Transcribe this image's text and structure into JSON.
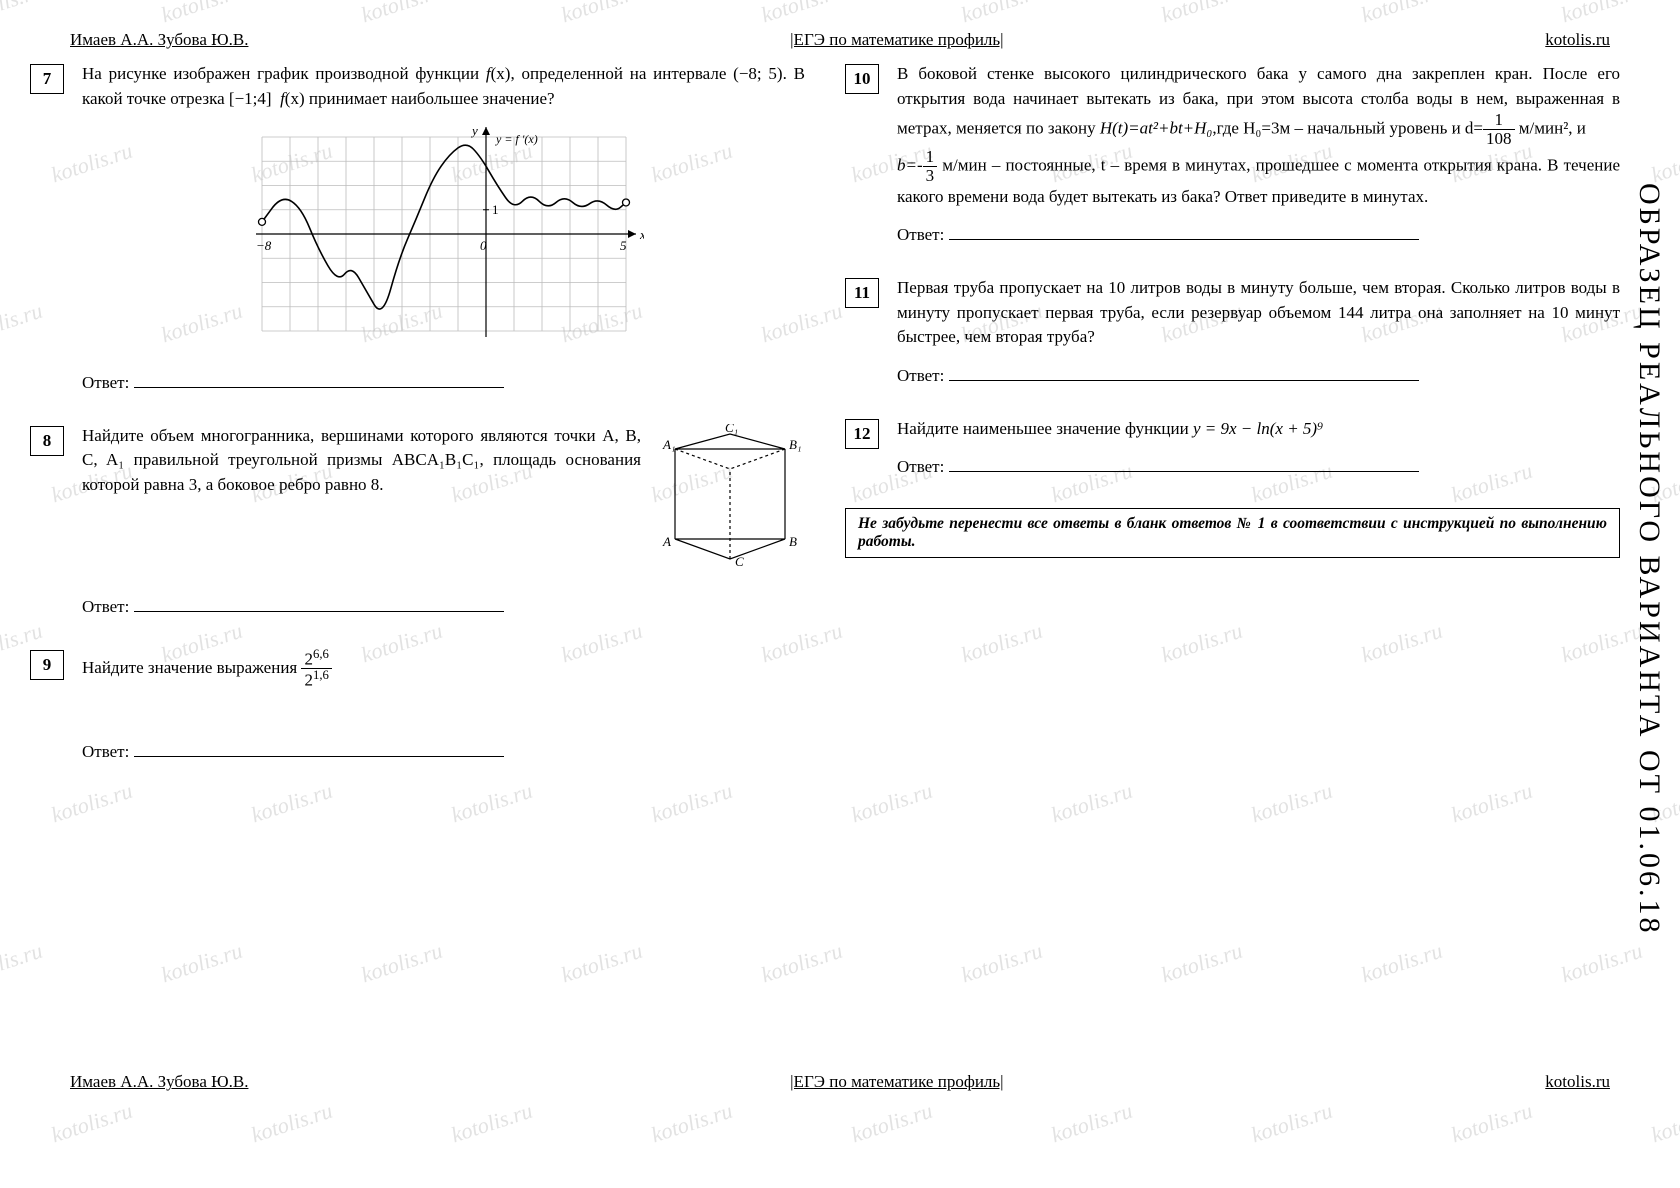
{
  "header": {
    "authors": "Имаев А.А. Зубова Ю.В.",
    "title": "|ЕГЭ по математике профиль|",
    "site": "kotolis.ru"
  },
  "side_label": "ОБРАЗЕЦ РЕАЛЬНОГО ВАРИАНТА ОТ 01.06.18",
  "watermark_text": "kotolis.ru",
  "answer_label": "Ответ:",
  "note": "Не забудьте перенести все ответы в бланк ответов № 1 в соответствии с инструкцией по выполнению работы.",
  "problems": {
    "p7": {
      "num": "7",
      "text_a": "На рисунке изображен график производной функции ",
      "fx": "f",
      "text_b": "(x), определенной на интервале (−8; 5). В какой точке отрезка [−1;4] ",
      "text_c": "(x) принимает наибольшее значение?",
      "chart": {
        "xgrid": [
          -8,
          -7,
          -6,
          -5,
          -4,
          -3,
          -2,
          -1,
          0,
          1,
          2,
          3,
          4,
          5
        ],
        "ygrid": [
          -4,
          -3,
          -2,
          -1,
          0,
          1,
          2,
          3,
          4
        ],
        "x_labels": {
          "-8": "−8",
          "0": "0",
          "5": "5"
        },
        "y_labels": {
          "1": "1"
        },
        "curve_label": "y = f ′(x)",
        "grid_color": "#bdbdbd",
        "axis_color": "#000000",
        "curve_color": "#000000",
        "stroke_width": 1.6,
        "points": [
          [
            -8,
            0.5
          ],
          [
            -7.3,
            1.6
          ],
          [
            -6.6,
            1.1
          ],
          [
            -6,
            -0.6
          ],
          [
            -5.3,
            -2.0
          ],
          [
            -4.8,
            -1.3
          ],
          [
            -4.3,
            -2.3
          ],
          [
            -3.7,
            -3.5
          ],
          [
            -3.1,
            -1.0
          ],
          [
            -2.5,
            0.6
          ],
          [
            -1.9,
            2.3
          ],
          [
            -1.3,
            3.3
          ],
          [
            -0.7,
            3.8
          ],
          [
            -0.2,
            3.2
          ],
          [
            0.4,
            2.0
          ],
          [
            1.0,
            1.0
          ],
          [
            1.6,
            1.7
          ],
          [
            2.2,
            1.0
          ],
          [
            2.8,
            1.6
          ],
          [
            3.4,
            1.0
          ],
          [
            4.0,
            1.5
          ],
          [
            4.6,
            0.9
          ],
          [
            5.0,
            1.3
          ]
        ]
      }
    },
    "p8": {
      "num": "8",
      "text": "Найдите объем многогранника, вершинами которого являются точки A, B, C, A₁ правильной треугольной призмы ABCA₁B₁C₁, площадь основания которой равна 3, а боковое ребро равно 8.",
      "prism_labels": {
        "A": "A",
        "B": "B",
        "C": "C",
        "A1": "A₁",
        "B1": "B₁",
        "C1": "C₁"
      }
    },
    "p9": {
      "num": "9",
      "text": "Найдите значение выражения ",
      "frac_num": "2⁶·⁶",
      "frac_num_plain": "2",
      "frac_num_exp": "6,6",
      "frac_den_plain": "2",
      "frac_den_exp": "1,6"
    },
    "p10": {
      "num": "10",
      "text_a": "В боковой стенке высокого цилиндрического бака у самого дна закреплен кран. После его открытия вода начинает вытекать из бака, при этом высота столба воды в нем, выраженная в метрах, меняется по закону ",
      "formula1_a": "H(t)=at²+bt+H₀",
      "formula1_b": ",где H₀=3м – начальный уровень и d=",
      "d_num": "1",
      "d_den": "108",
      "formula1_c": " м/мин², и",
      "formula2_a": "b=-",
      "b_num": "1",
      "b_den": "3",
      "formula2_b": " м/мин – постоянные, t – время в минутах, прошедшее с момента открытия крана. В течение какого времени вода будет вытекать из бака? Ответ приведите в минутах."
    },
    "p11": {
      "num": "11",
      "text": "Первая труба пропускает на 10 литров воды в минуту больше, чем вторая. Сколько литров воды в минуту пропускает первая труба, если резервуар объемом 144 литра она заполняет на 10 минут быстрее, чем вторая труба?"
    },
    "p12": {
      "num": "12",
      "text_a": "Найдите наименьшее значение функции ",
      "formula": "y = 9x − ln(x + 5)⁹"
    }
  }
}
